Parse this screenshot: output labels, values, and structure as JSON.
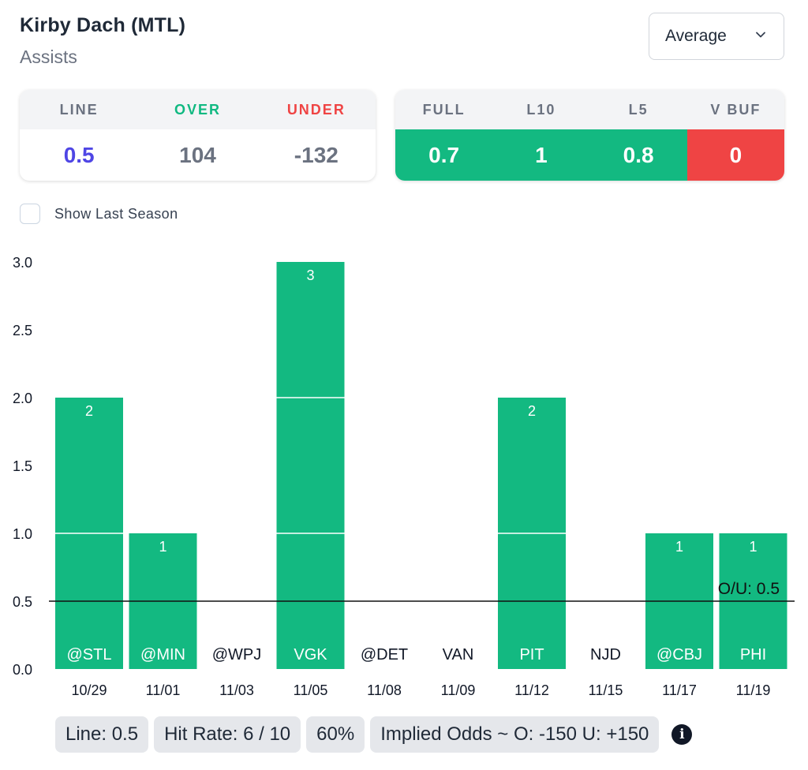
{
  "header": {
    "player": "Kirby Dach (MTL)",
    "stat": "Assists"
  },
  "dropdown": {
    "selected": "Average"
  },
  "odds": {
    "headers": [
      "LINE",
      "OVER",
      "UNDER"
    ],
    "values": [
      "0.5",
      "104",
      "-132"
    ]
  },
  "averages": {
    "headers": [
      "FULL",
      "L10",
      "L5",
      "V BUF"
    ],
    "values": [
      "0.7",
      "1",
      "0.8",
      "0"
    ]
  },
  "toggle": {
    "label": "Show Last Season",
    "checked": false
  },
  "chart_data": {
    "type": "bar",
    "categories": [
      "10/29",
      "11/01",
      "11/03",
      "11/05",
      "11/08",
      "11/09",
      "11/12",
      "11/15",
      "11/17",
      "11/19"
    ],
    "opponents": [
      "@STL",
      "@MIN",
      "@WPJ",
      "VGK",
      "@DET",
      "VAN",
      "PIT",
      "NJD",
      "@CBJ",
      "PHI"
    ],
    "values": [
      2,
      1,
      0,
      3,
      0,
      0,
      2,
      0,
      1,
      1
    ],
    "ylim": [
      0,
      3
    ],
    "yticks": [
      "0.0",
      "0.5",
      "1.0",
      "1.5",
      "2.0",
      "2.5",
      "3.0"
    ],
    "line": {
      "value": 0.5,
      "label": "O/U: 0.5"
    },
    "colors": {
      "bar": "#13b981",
      "line": "#111111"
    }
  },
  "footer": {
    "line": "Line: 0.5",
    "hit_rate": "Hit Rate: 6 / 10",
    "pct": "60%",
    "implied": "Implied Odds ~ O: -150 U: +150"
  }
}
